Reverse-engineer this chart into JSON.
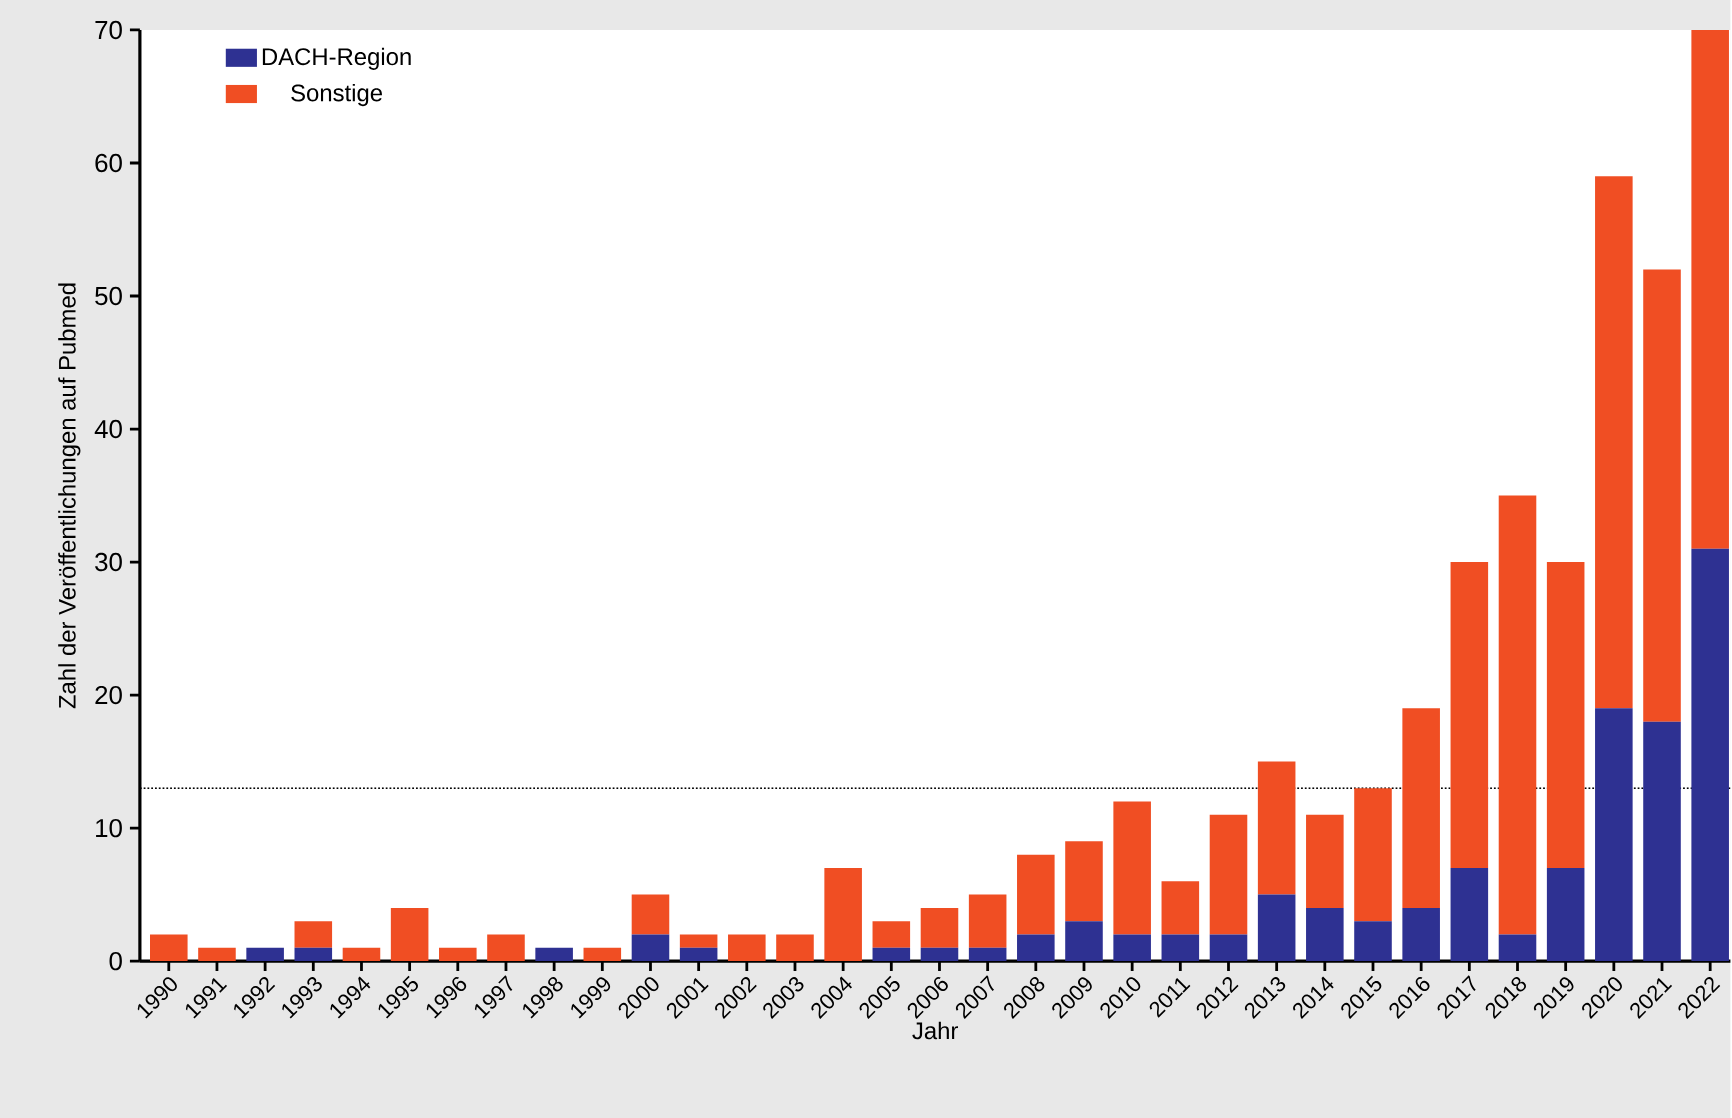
{
  "chart_data": {
    "type": "bar",
    "stacked": true,
    "xlabel": "Jahr",
    "ylabel": "Zahl der Veröffentlichungen auf Pubmed",
    "categories": [
      "1990",
      "1991",
      "1992",
      "1993",
      "1994",
      "1995",
      "1996",
      "1997",
      "1998",
      "1999",
      "2000",
      "2001",
      "2002",
      "2003",
      "2004",
      "2005",
      "2006",
      "2007",
      "2008",
      "2009",
      "2010",
      "2011",
      "2012",
      "2013",
      "2014",
      "2015",
      "2016",
      "2017",
      "2018",
      "2019",
      "2020",
      "2021",
      "2022"
    ],
    "series": [
      {
        "name": "DACH-Region",
        "color": "#2e3192",
        "values": [
          0,
          0,
          1,
          1,
          0,
          0,
          0,
          0,
          1,
          0,
          2,
          1,
          0,
          0,
          0,
          1,
          1,
          1,
          2,
          3,
          2,
          2,
          2,
          5,
          4,
          3,
          4,
          7,
          2,
          7,
          19,
          18,
          31
        ]
      },
      {
        "name": "Sonstige",
        "color": "#f04e23",
        "values": [
          2,
          1,
          0,
          2,
          1,
          4,
          1,
          2,
          0,
          1,
          3,
          1,
          2,
          2,
          7,
          2,
          3,
          4,
          6,
          6,
          10,
          4,
          9,
          10,
          7,
          10,
          15,
          23,
          33,
          23,
          40,
          34,
          39
        ]
      }
    ],
    "ylim": [
      0,
      70
    ],
    "yticks": [
      0,
      10,
      20,
      30,
      40,
      50,
      60,
      70
    ],
    "legend": "top left",
    "ref_lines": [
      {
        "axis": "y",
        "value": 13,
        "line_style": "dotted"
      }
    ]
  }
}
